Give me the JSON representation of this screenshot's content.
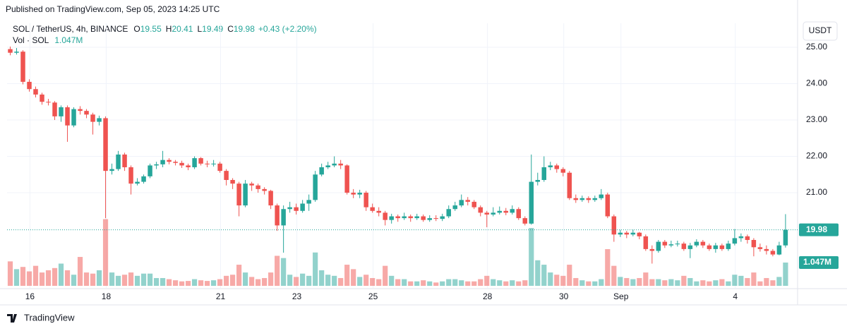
{
  "chart_data": {
    "type": "candlestick",
    "published": "Published on TradingView.com, Sep 05, 2023 14:25 UTC",
    "symbol": "SOL / TetherUS, 4h, BINANCE",
    "ohlc_legend": [
      {
        "label": "O",
        "value": "19.55"
      },
      {
        "label": "H",
        "value": "20.41"
      },
      {
        "label": "L",
        "value": "19.49"
      },
      {
        "label": "C",
        "value": "19.98"
      }
    ],
    "change": "+0.43 (+2.20%)",
    "volume_title": "Vol · SOL",
    "last_volume_label": "1.047M",
    "currency": "USDT",
    "footer": "TradingView",
    "up_color": "#26a69a",
    "down_color": "#ef5350",
    "grid": true,
    "ylim": [
      18.38,
      25.66
    ],
    "yticks": [
      {
        "value": 21,
        "label": "21.00"
      },
      {
        "value": 22,
        "label": "22.00"
      },
      {
        "value": 23,
        "label": "23.00"
      },
      {
        "value": 24,
        "label": "24.00"
      },
      {
        "value": 25,
        "label": "25.00"
      }
    ],
    "xlim": [
      -0.5,
      123.9
    ],
    "xticks": [
      {
        "value": 3.1,
        "label": "16"
      },
      {
        "value": 15.1,
        "label": "18"
      },
      {
        "value": 33.1,
        "label": "21"
      },
      {
        "value": 45.1,
        "label": "23"
      },
      {
        "value": 57.1,
        "label": "25"
      },
      {
        "value": 75.1,
        "label": "28"
      },
      {
        "value": 87.1,
        "label": "30"
      },
      {
        "value": 96.1,
        "label": "Sep"
      },
      {
        "value": 114.1,
        "label": "4"
      }
    ],
    "open": [
      24.95,
      24.85,
      24.88,
      24.05,
      23.85,
      23.7,
      23.5,
      23.48,
      23.1,
      23.35,
      22.85,
      23.3,
      23.25,
      23.15,
      22.95,
      23.05,
      21.6,
      21.65,
      22.05,
      21.7,
      21.25,
      21.3,
      21.45,
      21.75,
      21.78,
      21.9,
      21.85,
      21.82,
      21.75,
      21.7,
      21.95,
      21.8,
      21.78,
      21.8,
      21.6,
      21.35,
      21.25,
      20.65,
      21.25,
      21.2,
      21.1,
      21.05,
      20.65,
      20.1,
      20.55,
      20.6,
      20.5,
      20.7,
      20.8,
      21.5,
      21.7,
      21.75,
      21.8,
      21.75,
      21.0,
      20.95,
      21.0,
      20.6,
      20.5,
      20.45,
      20.25,
      20.35,
      20.3,
      20.35,
      20.3,
      20.35,
      20.25,
      20.3,
      20.28,
      20.35,
      20.55,
      20.65,
      20.8,
      20.75,
      20.6,
      20.45,
      20.4,
      20.45,
      20.5,
      20.45,
      20.55,
      20.3,
      20.15,
      21.3,
      21.35,
      21.7,
      21.75,
      21.65,
      21.55,
      20.85,
      20.8,
      20.85,
      20.8,
      20.85,
      20.95,
      20.35,
      19.85,
      19.9,
      19.85,
      19.9,
      19.8,
      19.45,
      19.4,
      19.65,
      19.55,
      19.58,
      19.6,
      19.45,
      19.55,
      19.65,
      19.55,
      19.45,
      19.55,
      19.45,
      19.6,
      19.75,
      19.8,
      19.7,
      19.5,
      19.45,
      19.4,
      19.3,
      19.55
    ],
    "high": [
      25.02,
      24.98,
      24.92,
      24.12,
      23.92,
      23.75,
      23.58,
      23.52,
      23.4,
      23.4,
      23.35,
      23.38,
      23.3,
      23.2,
      23.12,
      23.1,
      21.8,
      22.15,
      22.1,
      21.75,
      21.4,
      21.5,
      21.8,
      21.85,
      22.15,
      21.95,
      21.9,
      21.88,
      21.8,
      22.0,
      21.98,
      21.88,
      21.9,
      21.85,
      21.65,
      21.4,
      21.3,
      21.35,
      21.3,
      21.25,
      21.15,
      21.08,
      20.7,
      20.65,
      20.75,
      20.7,
      20.8,
      20.95,
      21.6,
      21.8,
      21.85,
      22.0,
      21.9,
      21.78,
      21.1,
      21.08,
      21.05,
      20.7,
      20.6,
      20.5,
      20.42,
      20.4,
      20.45,
      20.4,
      20.42,
      20.4,
      20.38,
      20.38,
      20.42,
      20.65,
      20.75,
      20.95,
      20.88,
      20.8,
      20.65,
      20.5,
      20.6,
      20.62,
      20.58,
      20.65,
      20.6,
      20.35,
      22.05,
      21.55,
      22.0,
      21.85,
      21.8,
      21.7,
      21.6,
      20.95,
      20.92,
      20.9,
      20.92,
      21.1,
      21.0,
      20.4,
      19.98,
      19.95,
      19.98,
      19.92,
      19.85,
      19.55,
      19.7,
      19.7,
      19.68,
      19.68,
      19.65,
      19.62,
      19.72,
      19.7,
      19.6,
      19.62,
      19.6,
      19.68,
      20.0,
      19.88,
      19.85,
      19.75,
      19.6,
      19.55,
      19.45,
      19.65,
      20.41
    ],
    "low": [
      24.78,
      24.8,
      23.98,
      23.78,
      23.62,
      23.42,
      23.4,
      23.0,
      22.95,
      22.4,
      22.8,
      23.15,
      23.05,
      22.6,
      22.85,
      20.3,
      21.5,
      21.6,
      21.6,
      20.95,
      21.2,
      21.25,
      21.4,
      21.65,
      21.7,
      21.78,
      21.75,
      21.68,
      21.62,
      21.65,
      21.75,
      21.7,
      21.72,
      21.55,
      21.2,
      21.1,
      20.35,
      20.6,
      21.05,
      21.0,
      20.95,
      20.55,
      19.95,
      19.35,
      20.45,
      20.4,
      20.45,
      20.5,
      20.75,
      21.45,
      21.65,
      21.7,
      21.65,
      20.95,
      20.85,
      20.85,
      20.5,
      20.45,
      20.35,
      20.1,
      20.15,
      20.2,
      20.25,
      20.2,
      20.25,
      20.2,
      20.2,
      20.22,
      20.22,
      20.3,
      20.5,
      20.6,
      20.65,
      20.55,
      20.35,
      20.05,
      20.35,
      20.4,
      20.38,
      20.4,
      20.25,
      20.1,
      20.12,
      21.2,
      21.3,
      21.62,
      21.55,
      21.45,
      20.8,
      20.72,
      20.75,
      20.72,
      20.75,
      20.8,
      20.3,
      19.65,
      19.78,
      19.75,
      19.8,
      19.72,
      19.4,
      19.05,
      19.35,
      19.48,
      19.5,
      19.52,
      19.4,
      19.2,
      19.5,
      19.48,
      19.4,
      19.35,
      19.4,
      19.4,
      19.55,
      19.65,
      19.6,
      19.25,
      19.38,
      19.3,
      19.25,
      19.28,
      19.49
    ],
    "close": [
      24.85,
      24.88,
      24.05,
      23.85,
      23.7,
      23.5,
      23.48,
      23.1,
      23.35,
      22.85,
      23.3,
      23.25,
      23.15,
      22.95,
      23.05,
      21.6,
      21.65,
      22.05,
      21.7,
      21.25,
      21.3,
      21.45,
      21.75,
      21.78,
      21.9,
      21.85,
      21.82,
      21.75,
      21.7,
      21.95,
      21.8,
      21.78,
      21.8,
      21.6,
      21.35,
      21.25,
      20.65,
      21.25,
      21.2,
      21.1,
      21.05,
      20.65,
      20.1,
      20.55,
      20.6,
      20.5,
      20.7,
      20.8,
      21.5,
      21.7,
      21.75,
      21.8,
      21.75,
      21.0,
      20.95,
      21.0,
      20.6,
      20.5,
      20.45,
      20.25,
      20.35,
      20.3,
      20.35,
      20.3,
      20.35,
      20.25,
      20.3,
      20.28,
      20.35,
      20.55,
      20.65,
      20.8,
      20.75,
      20.6,
      20.45,
      20.4,
      20.45,
      20.5,
      20.45,
      20.55,
      20.3,
      20.15,
      21.3,
      21.35,
      21.7,
      21.75,
      21.65,
      21.55,
      20.85,
      20.8,
      20.85,
      20.8,
      20.85,
      20.95,
      20.35,
      19.85,
      19.9,
      19.85,
      19.9,
      19.8,
      19.45,
      19.4,
      19.65,
      19.55,
      19.58,
      19.6,
      19.45,
      19.55,
      19.65,
      19.55,
      19.45,
      19.55,
      19.45,
      19.6,
      19.75,
      19.8,
      19.7,
      19.5,
      19.45,
      19.4,
      19.3,
      19.55,
      19.98
    ],
    "volume": [
      1.1,
      0.75,
      0.85,
      0.65,
      0.9,
      0.6,
      0.7,
      0.8,
      1.0,
      0.7,
      0.5,
      1.3,
      0.6,
      0.55,
      0.7,
      3.0,
      0.6,
      0.45,
      0.5,
      0.6,
      0.45,
      0.55,
      0.55,
      0.35,
      0.35,
      0.3,
      0.25,
      0.2,
      0.22,
      0.3,
      0.25,
      0.22,
      0.25,
      0.3,
      0.45,
      0.5,
      0.95,
      0.6,
      0.4,
      0.3,
      0.35,
      0.6,
      1.35,
      1.25,
      0.5,
      0.4,
      0.55,
      0.45,
      1.5,
      0.7,
      0.5,
      0.45,
      0.35,
      0.95,
      0.75,
      0.4,
      0.5,
      0.35,
      0.3,
      0.9,
      0.45,
      0.3,
      0.3,
      0.2,
      0.2,
      0.25,
      0.2,
      0.15,
      0.2,
      0.3,
      0.3,
      0.25,
      0.2,
      0.2,
      0.3,
      0.45,
      0.3,
      0.25,
      0.2,
      0.25,
      0.2,
      0.25,
      2.6,
      1.15,
      0.95,
      0.6,
      0.5,
      0.45,
      0.95,
      0.35,
      0.25,
      0.2,
      0.2,
      0.3,
      1.65,
      0.9,
      0.4,
      0.35,
      0.3,
      0.35,
      0.6,
      0.3,
      0.3,
      0.25,
      0.3,
      0.25,
      0.45,
      0.35,
      0.2,
      0.25,
      0.2,
      0.25,
      0.3,
      0.2,
      0.5,
      0.45,
      0.35,
      0.6,
      0.2,
      0.35,
      0.25,
      0.4,
      1.047
    ]
  }
}
